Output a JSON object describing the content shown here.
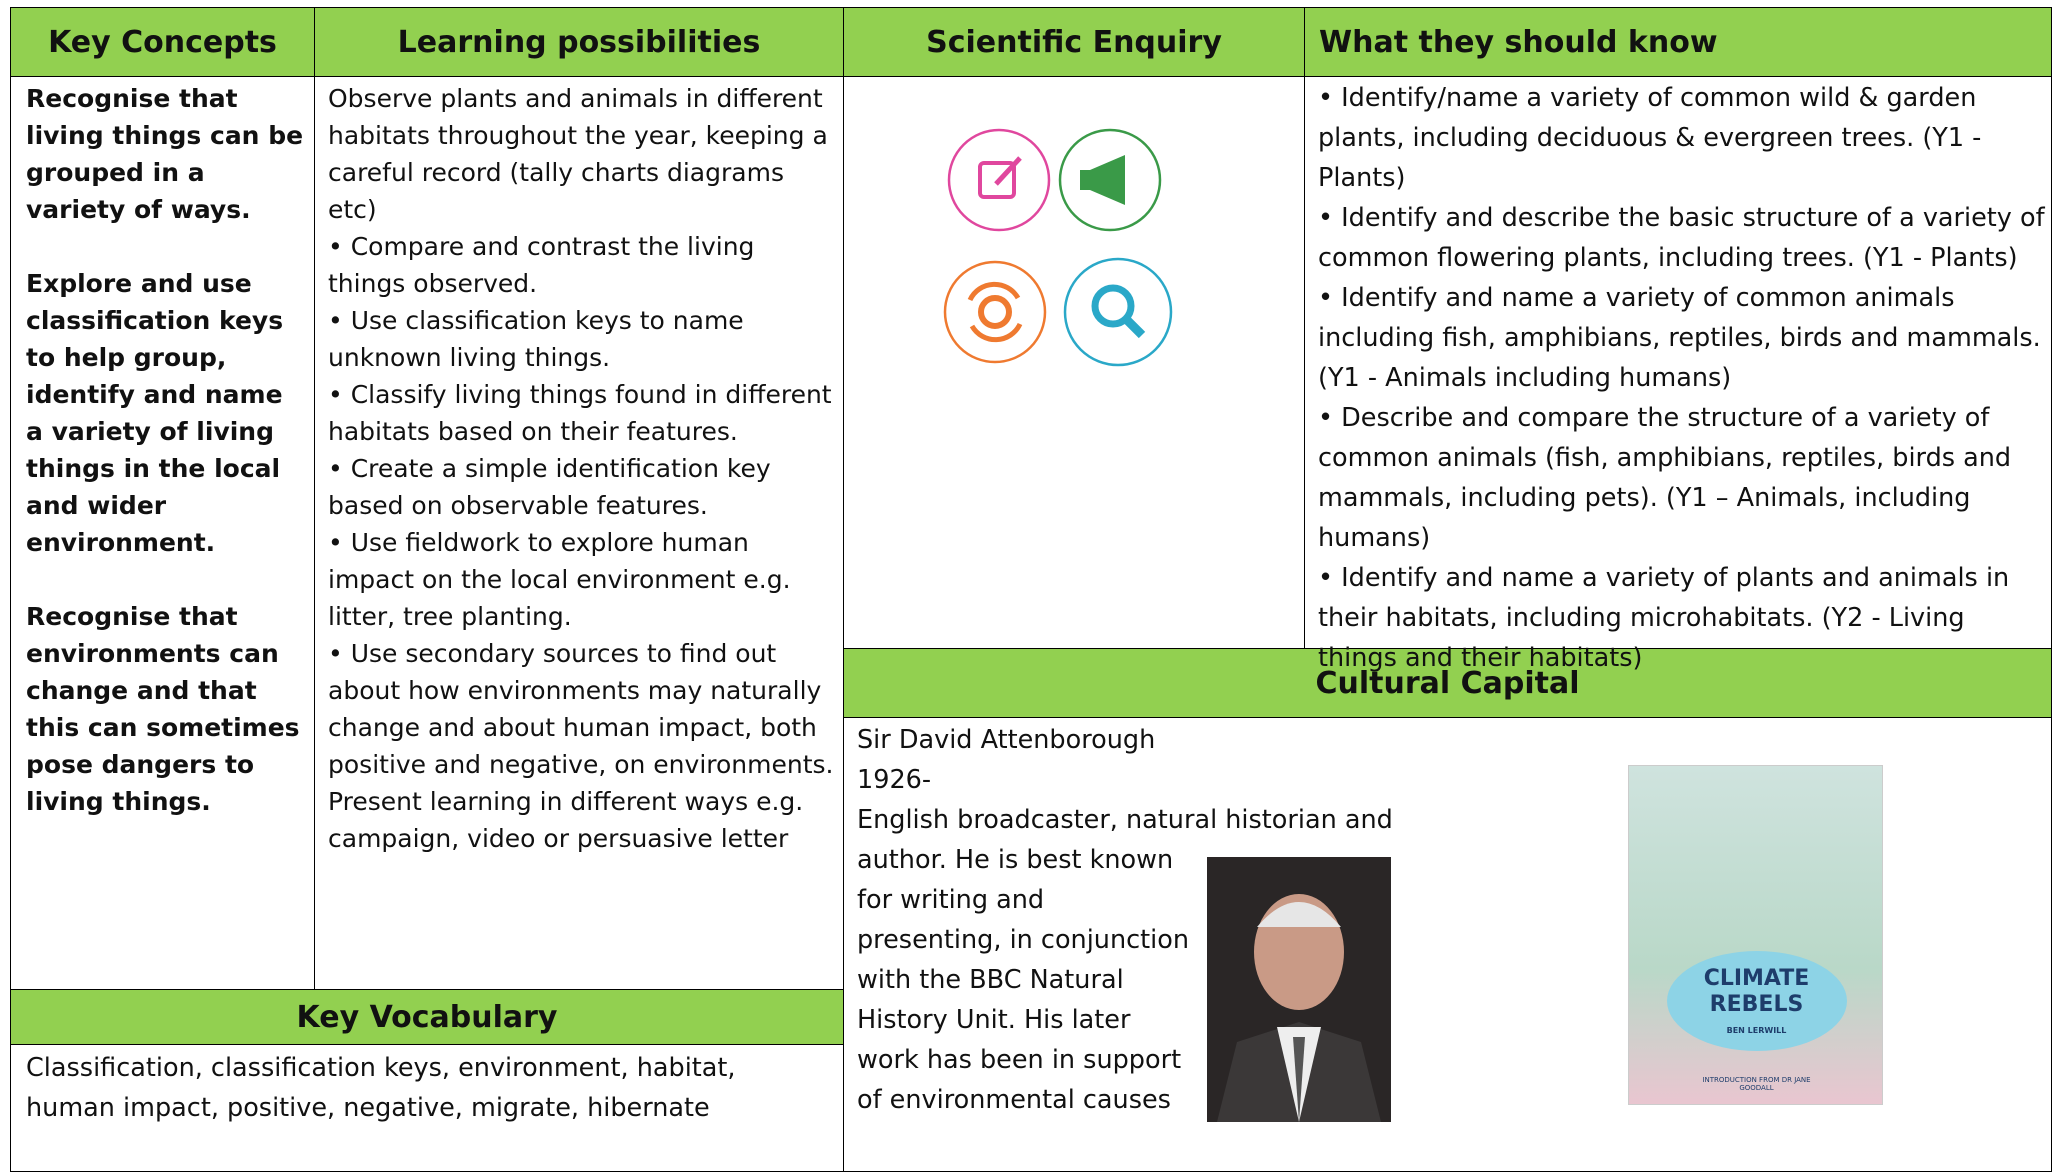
{
  "headers": {
    "key_concepts": "Key Concepts",
    "learning": "Learning possibilities",
    "enquiry": "Scientific Enquiry",
    "know": "What they should know",
    "vocabulary": "Key Vocabulary",
    "cultural": "Cultural Capital"
  },
  "key_concepts": [
    "Recognise that living things can be grouped in a variety of ways.",
    "Explore and use classification keys to help group, identify and name a variety of living things in the local and wider environment.",
    "Recognise that environments can change and that this can sometimes pose dangers to living things."
  ],
  "learning": [
    "Observe plants and animals in different habitats throughout the year, keeping a careful record (tally charts diagrams etc)",
    "• Compare and contrast the living things observed.",
    "• Use classification keys to name unknown living things.",
    "• Classify living things found in different habitats based on their features.",
    "• Create a simple identification key based on observable features.",
    "• Use fieldwork to explore human impact on the local environment e.g. litter, tree planting.",
    "• Use secondary sources to find out about how environments may naturally change and about human impact, both positive and negative, on environments. Present learning in different ways e.g. campaign, video or persuasive letter"
  ],
  "know": [
    "• Identify/name a variety of common wild & garden plants, including deciduous & evergreen trees. (Y1 - Plants)",
    "• Identify and describe the basic structure of a variety of common flowering plants, including trees. (Y1 - Plants)",
    "• Identify and name a variety of common animals including fish, amphibians, reptiles, birds and mammals. (Y1 - Animals including humans)",
    "• Describe and compare the structure of a variety of common animals (fish, amphibians, reptiles, birds and mammals, including pets). (Y1 – Animals, including humans)",
    "• Identify and name a variety of plants and animals in their habitats, including microhabitats. (Y2 - Living things and their habitats)"
  ],
  "vocabulary": "Classification, classification keys, environment, habitat, human impact, positive, negative, migrate, hibernate",
  "cultural": {
    "lines": [
      "Sir David Attenborough",
      "1926-",
      "English broadcaster, natural historian and",
      "author. He is best known",
      "for writing and",
      "presenting, in conjunction",
      "with the BBC Natural",
      "History Unit.  His later",
      "work has been in support",
      "of environmental causes"
    ],
    "book": {
      "title": "CLIMATE REBELS",
      "author": "BEN LERWILL",
      "intro": "INTRODUCTION FROM DR JANE GOODALL"
    }
  }
}
